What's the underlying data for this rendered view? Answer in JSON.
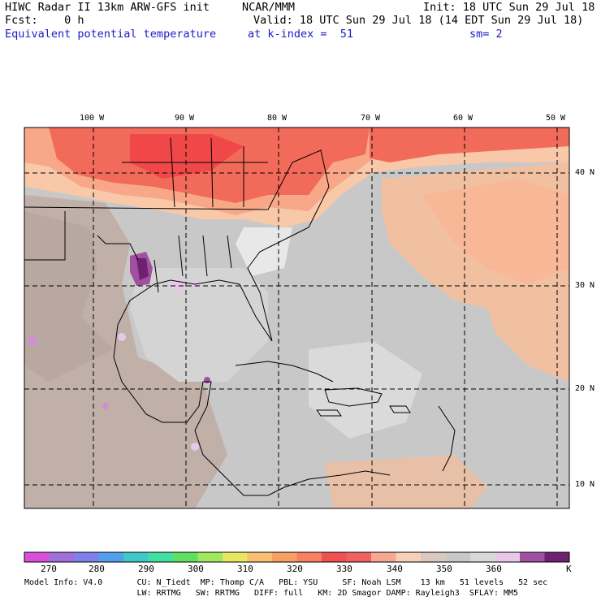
{
  "header": {
    "left_line1": "HIWC Radar II 13km ARW-GFS init",
    "center_line1": "NCAR/MMM",
    "right_line1": "Init: 18 UTC Sun 29 Jul 18",
    "left_line2": "Fcst:    0 h",
    "right_line2": "Valid: 18 UTC Sun 29 Jul 18 (14 EDT Sun 29 Jul 18)",
    "field_name": "Equivalent potential temperature",
    "k_index": "at k-index =  51",
    "smoothing": "sm= 2"
  },
  "map": {
    "lon_labels": [
      "100 W",
      "90 W",
      "80 W",
      "70 W",
      "60 W",
      "50 W"
    ],
    "lat_labels": [
      "40 N",
      "30 N",
      "20 N",
      "10 N"
    ]
  },
  "colorbar": {
    "colors": [
      "#d94fd9",
      "#a070d8",
      "#8080ec",
      "#50a0ec",
      "#40c8c8",
      "#40e0a0",
      "#60e060",
      "#a0e860",
      "#e8e860",
      "#f8c070",
      "#f8a060",
      "#f88060",
      "#f05050",
      "#f06060",
      "#f8a890",
      "#f8d0b8",
      "#d8c8c0",
      "#c8c8c8",
      "#d8d8d8",
      "#e8c8e8",
      "#a050a0",
      "#702070"
    ],
    "labels": [
      "270",
      "280",
      "290",
      "300",
      "310",
      "320",
      "330",
      "340",
      "350",
      "360",
      "K"
    ]
  },
  "footer": {
    "line1": "Model Info: V4.0       CU: N_Tiedt  MP: Thomp C/A   PBL: YSU     SF: Noah LSM    13 km   51 levels   52 sec",
    "line2": "                       LW: RRTMG   SW: RRTMG   DIFF: full   KM: 2D Smagor DAMP: Rayleigh3  SFLAY: MM5"
  }
}
